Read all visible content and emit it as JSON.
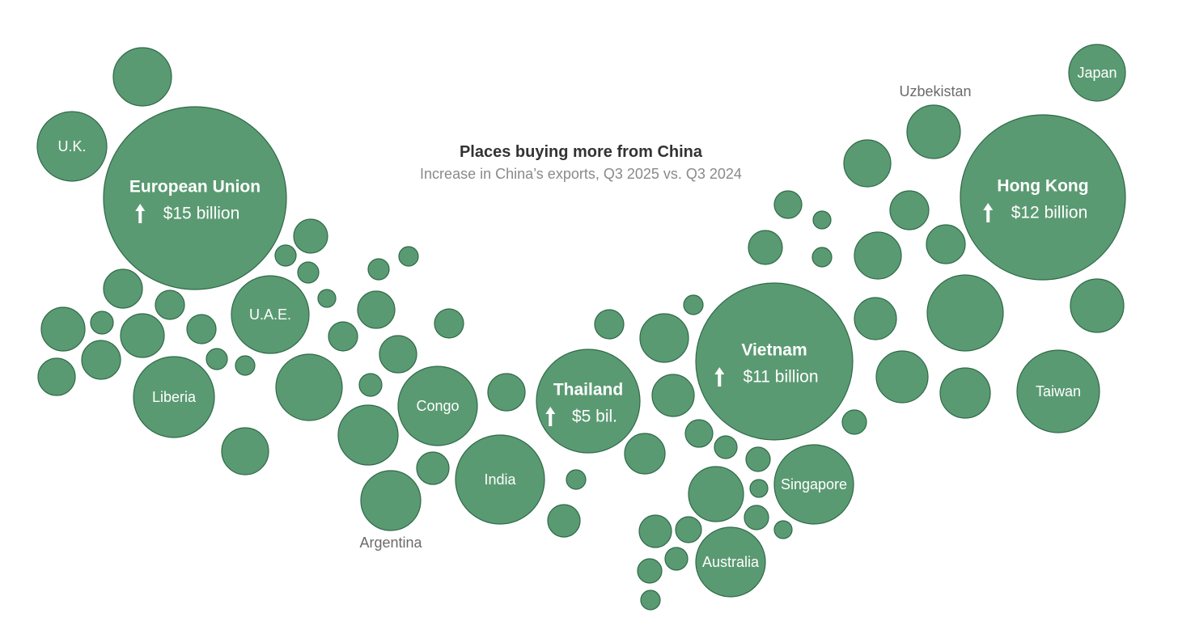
{
  "chart_data": {
    "type": "bubble",
    "title": "Places buying more from China",
    "subtitle": "Increase in China’s exports, Q3 2025 vs. Q3 2024",
    "unit": "billion USD",
    "colors": {
      "bubble": "#5a9a72",
      "stroke": "#2f6a48",
      "text": "#ffffff",
      "outside_label": "#6b6b6b"
    },
    "labeled": [
      {
        "name": "European Union",
        "value": 15,
        "value_label": "$15 billion"
      },
      {
        "name": "Hong Kong",
        "value": 12,
        "value_label": "$12 billion"
      },
      {
        "name": "Vietnam",
        "value": 11,
        "value_label": "$11 billion"
      },
      {
        "name": "Thailand",
        "value": 5,
        "value_label": "$5 bil."
      },
      {
        "name": "U.K."
      },
      {
        "name": "U.A.E."
      },
      {
        "name": "Liberia"
      },
      {
        "name": "Congo"
      },
      {
        "name": "India"
      },
      {
        "name": "Argentina"
      },
      {
        "name": "Singapore"
      },
      {
        "name": "Australia"
      },
      {
        "name": "Taiwan"
      },
      {
        "name": "Japan"
      },
      {
        "name": "Uzbekistan"
      }
    ]
  }
}
